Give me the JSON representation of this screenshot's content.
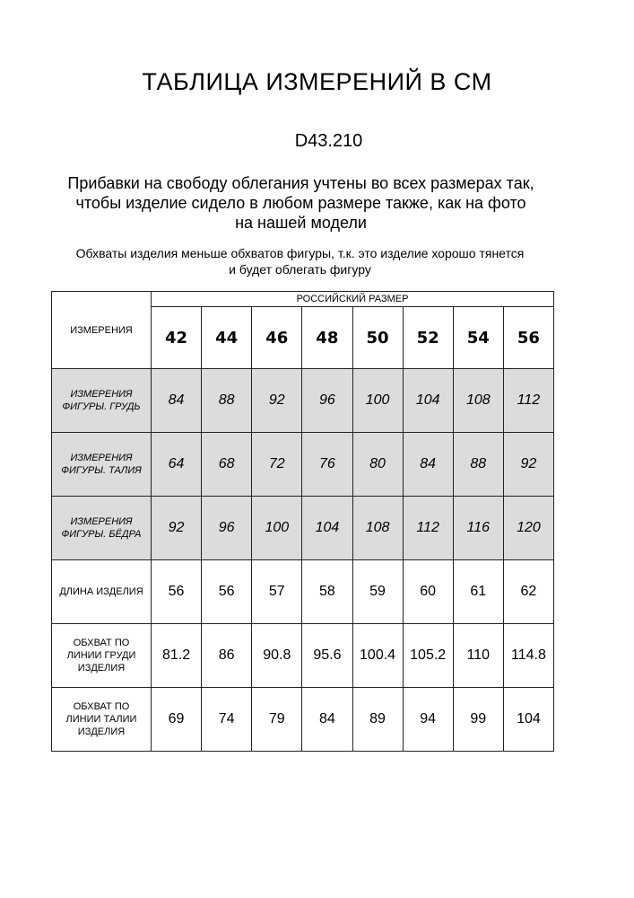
{
  "title": "ТАБЛИЦА ИЗМЕРЕНИЙ В СМ",
  "code": "D43.210",
  "note_main": [
    "Прибавки на свободу облегания учтены во всех размерах так,",
    "чтобы изделие сидело в любом размере также, как на фото",
    "на нашей модели"
  ],
  "note_small": [
    "Обхваты изделия меньше обхватов фигуры, т.к. это изделие хорошо тянется",
    "и будет облегать фигуру"
  ],
  "table": {
    "corner_label": "ИЗМЕРЕНИЯ",
    "group_label": "РОССИЙСКИЙ РАЗМЕР",
    "sizes": [
      "42",
      "44",
      "46",
      "48",
      "50",
      "52",
      "54",
      "56"
    ],
    "rows": [
      {
        "label": [
          "ИЗМЕРЕНИЯ",
          "ФИГУРЫ. ГРУДЬ"
        ],
        "shaded": true,
        "values": [
          "84",
          "88",
          "92",
          "96",
          "100",
          "104",
          "108",
          "112"
        ]
      },
      {
        "label": [
          "ИЗМЕРЕНИЯ",
          "ФИГУРЫ. ТАЛИЯ"
        ],
        "shaded": true,
        "values": [
          "64",
          "68",
          "72",
          "76",
          "80",
          "84",
          "88",
          "92"
        ]
      },
      {
        "label": [
          "ИЗМЕРЕНИЯ",
          "ФИГУРЫ. БЁДРА"
        ],
        "shaded": true,
        "values": [
          "92",
          "96",
          "100",
          "104",
          "108",
          "112",
          "116",
          "120"
        ]
      },
      {
        "label": [
          "ДЛИНА ИЗДЕЛИЯ"
        ],
        "shaded": false,
        "values": [
          "56",
          "56",
          "57",
          "58",
          "59",
          "60",
          "61",
          "62"
        ]
      },
      {
        "label": [
          "ОБХВАТ ПО",
          "ЛИНИИ ГРУДИ",
          "ИЗДЕЛИЯ"
        ],
        "shaded": false,
        "values": [
          "81.2",
          "86",
          "90.8",
          "95.6",
          "100.4",
          "105.2",
          "110",
          "114.8"
        ]
      },
      {
        "label": [
          "ОБХВАТ ПО",
          "ЛИНИИ ТАЛИИ",
          "ИЗДЕЛИЯ"
        ],
        "shaded": false,
        "values": [
          "69",
          "74",
          "79",
          "84",
          "89",
          "94",
          "99",
          "104"
        ]
      }
    ],
    "shade_color": "#dcdcdc"
  }
}
